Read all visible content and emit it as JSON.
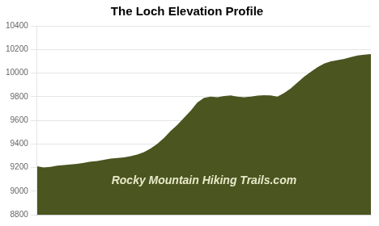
{
  "chart_data": {
    "type": "area",
    "title": "The Loch Elevation Profile",
    "annotation": "Rocky Mountain Hiking Trails.com",
    "x": [
      0.0,
      0.02,
      0.04,
      0.06,
      0.08,
      0.1,
      0.12,
      0.14,
      0.16,
      0.18,
      0.2,
      0.22,
      0.24,
      0.26,
      0.28,
      0.3,
      0.32,
      0.34,
      0.36,
      0.38,
      0.4,
      0.42,
      0.44,
      0.46,
      0.48,
      0.5,
      0.52,
      0.54,
      0.56,
      0.58,
      0.6,
      0.62,
      0.64,
      0.66,
      0.68,
      0.7,
      0.72,
      0.74,
      0.76,
      0.78,
      0.8,
      0.82,
      0.84,
      0.86,
      0.88,
      0.9,
      0.92,
      0.94,
      0.96,
      0.98,
      1.0
    ],
    "values": [
      9210,
      9200,
      9205,
      9215,
      9220,
      9225,
      9230,
      9240,
      9250,
      9255,
      9265,
      9275,
      9280,
      9285,
      9295,
      9310,
      9330,
      9360,
      9400,
      9450,
      9510,
      9560,
      9620,
      9680,
      9750,
      9790,
      9800,
      9795,
      9805,
      9810,
      9800,
      9795,
      9800,
      9808,
      9812,
      9810,
      9800,
      9830,
      9870,
      9920,
      9970,
      10010,
      10050,
      10080,
      10100,
      10110,
      10120,
      10135,
      10148,
      10155,
      10160
    ],
    "color": "#4a5520",
    "xlim": [
      0,
      1
    ],
    "ylim": [
      8800,
      10400
    ],
    "yticks": [
      8800,
      9000,
      9200,
      9400,
      9600,
      9800,
      10000,
      10200,
      10400
    ],
    "grid": true,
    "tick_labels": "y"
  }
}
